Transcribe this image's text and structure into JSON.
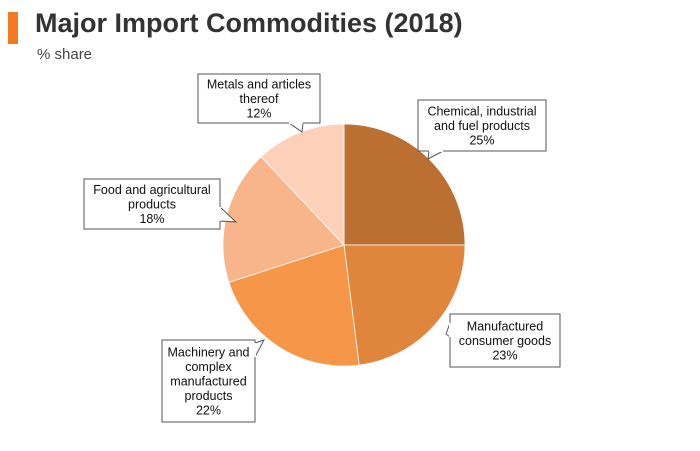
{
  "title": "Major Import Commodities (2018)",
  "subtitle": "% share",
  "colors": {
    "accent": "#f47920"
  },
  "chart_data": {
    "type": "pie",
    "title": "Major Import Commodities (2018)",
    "subtitle": "% share",
    "unit": "%",
    "slices": [
      {
        "label_lines": [
          "Chemical, industrial",
          "and fuel products",
          "25%"
        ],
        "value": 25,
        "color": "#bb6f30"
      },
      {
        "label_lines": [
          "Manufactured",
          "consumer goods",
          "23%"
        ],
        "value": 23,
        "color": "#df853c"
      },
      {
        "label_lines": [
          "Machinery and",
          "complex",
          "manufactured",
          "products",
          "22%"
        ],
        "value": 22,
        "color": "#f59649"
      },
      {
        "label_lines": [
          "Food and agricultural",
          "products",
          "18%"
        ],
        "value": 18,
        "color": "#f9b58a"
      },
      {
        "label_lines": [
          "Metals and articles",
          "thereof",
          "12%"
        ],
        "value": 12,
        "color": "#fcd0b9"
      }
    ]
  }
}
